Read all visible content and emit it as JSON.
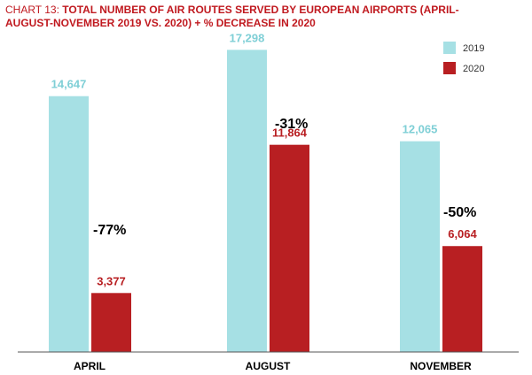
{
  "chart_data": {
    "type": "bar",
    "title_prefix": "CHART 13: ",
    "title": "TOTAL NUMBER OF AIR ROUTES SERVED BY EUROPEAN AIRPORTS (APRIL-AUGUST-NOVEMBER 2019 VS. 2020) + % DECREASE IN 2020",
    "categories": [
      "APRIL",
      "AUGUST",
      "NOVEMBER"
    ],
    "series": [
      {
        "name": "2019",
        "values": [
          14647,
          17298,
          12065
        ],
        "labels": [
          "14,647",
          "17,298",
          "12,065"
        ],
        "color": "#a6e0e4"
      },
      {
        "name": "2020",
        "values": [
          3377,
          11864,
          6064
        ],
        "labels": [
          "3,377",
          "11,864",
          "6,064"
        ],
        "color": "#b81f22"
      }
    ],
    "annotations": [
      "-77%",
      "-31%",
      "-50%"
    ],
    "ylim": [
      0,
      20000
    ],
    "grid": false,
    "legend": "top-right"
  }
}
